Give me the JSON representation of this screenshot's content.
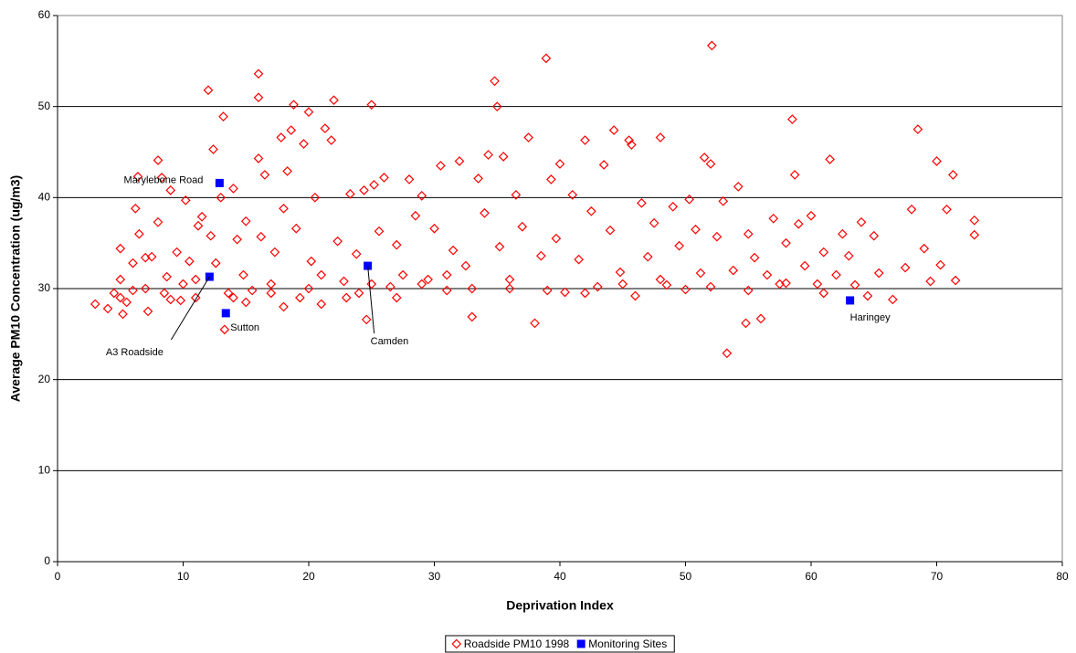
{
  "chart_data": {
    "type": "scatter",
    "xlabel": "Deprivation Index",
    "ylabel": "Average PM10 Concentration (ug/m3)",
    "xlim": [
      0,
      80
    ],
    "xticks": [
      0,
      10,
      20,
      30,
      40,
      50,
      60,
      70,
      80
    ],
    "ylim": [
      0,
      60
    ],
    "yticks": [
      0,
      10,
      20,
      30,
      40,
      50,
      60
    ],
    "grid": true,
    "legend": "bottom",
    "series": [
      {
        "name": "Roadside PM10 1998",
        "color": "#ff0000",
        "marker": "diamond",
        "x": [
          3,
          4,
          4.5,
          5,
          5,
          5,
          5.2,
          5.5,
          6,
          6.2,
          6.4,
          6.5,
          7,
          7,
          7.2,
          7.5,
          8,
          8,
          8.3,
          8.5,
          8.7,
          9,
          9.5,
          9.8,
          10,
          10.2,
          10.5,
          11,
          11.2,
          11.5,
          12,
          12.2,
          12.4,
          12.6,
          13,
          13.2,
          13.3,
          13.6,
          14,
          14.3,
          14.8,
          15,
          15.5,
          16,
          16,
          16,
          16.2,
          16.5,
          17,
          17.3,
          17.8,
          18,
          18.3,
          18.6,
          18.8,
          19,
          19.3,
          19.6,
          20,
          20.2,
          20.5,
          21,
          21.3,
          21.8,
          22,
          22.3,
          22.8,
          23.3,
          23.8,
          24,
          24.4,
          24.6,
          25,
          25.2,
          25.6,
          26,
          26.5,
          27,
          27.5,
          28,
          28.5,
          29,
          29.5,
          30,
          30.5,
          31,
          31.5,
          32,
          32.5,
          33,
          33.5,
          34,
          34.3,
          34.8,
          35,
          35.2,
          35.5,
          36,
          36.5,
          37,
          37.5,
          38,
          38.5,
          38.9,
          39.3,
          39.7,
          40,
          40.4,
          41,
          41.5,
          42,
          42.5,
          43,
          43.5,
          44,
          44.3,
          44.8,
          45.5,
          45.7,
          46,
          46.5,
          47,
          47.5,
          48,
          48.5,
          49,
          49.5,
          50,
          50.3,
          50.8,
          51.2,
          51.5,
          52,
          52.1,
          52.5,
          53,
          53.3,
          53.8,
          54.2,
          54.8,
          55,
          55.5,
          56,
          56.5,
          57,
          57.5,
          58,
          58.5,
          58.7,
          59,
          59.5,
          60,
          60.5,
          61,
          61.5,
          62,
          62.5,
          63,
          63.5,
          64,
          64.5,
          65,
          65.4,
          66.5,
          67.5,
          68,
          68.5,
          69,
          69.5,
          70,
          70.3,
          70.8,
          71.3,
          71.5,
          73,
          73,
          6,
          9,
          11,
          14,
          15,
          17,
          18,
          20,
          21,
          23,
          25,
          27,
          29,
          31,
          33,
          36,
          39,
          42,
          45,
          48,
          52,
          55,
          58,
          61
        ],
        "values": [
          28.3,
          27.8,
          29.5,
          34.4,
          31,
          29,
          27.2,
          28.5,
          32.8,
          38.8,
          42.3,
          36,
          33.4,
          30,
          27.5,
          33.5,
          44.1,
          37.3,
          42.2,
          29.5,
          31.3,
          40.8,
          34,
          28.7,
          30.5,
          39.7,
          33,
          29,
          36.9,
          37.9,
          51.8,
          35.8,
          45.3,
          32.8,
          40,
          48.9,
          25.5,
          29.5,
          41,
          35.4,
          31.5,
          37.4,
          29.8,
          53.6,
          51,
          44.3,
          35.7,
          42.5,
          30.5,
          34,
          46.6,
          38.8,
          42.9,
          47.4,
          50.2,
          36.6,
          29,
          45.9,
          49.4,
          33,
          40,
          28.3,
          47.6,
          46.3,
          50.7,
          35.2,
          30.8,
          40.4,
          33.8,
          29.5,
          40.8,
          26.6,
          50.2,
          41.4,
          36.3,
          42.2,
          30.2,
          34.8,
          31.5,
          42,
          38,
          40.2,
          31,
          36.6,
          43.5,
          29.8,
          34.2,
          44,
          32.5,
          26.9,
          42.1,
          38.3,
          44.7,
          52.8,
          50,
          34.6,
          44.5,
          30,
          40.3,
          36.8,
          46.6,
          26.2,
          33.6,
          55.3,
          42,
          35.5,
          43.7,
          29.6,
          40.3,
          33.2,
          46.3,
          38.5,
          30.2,
          43.6,
          36.4,
          47.4,
          31.8,
          46.3,
          45.8,
          29.2,
          39.4,
          33.5,
          37.2,
          46.6,
          30.4,
          39,
          34.7,
          29.9,
          39.8,
          36.5,
          31.7,
          44.4,
          43.7,
          56.7,
          35.7,
          39.6,
          22.9,
          32,
          41.2,
          26.2,
          36,
          33.4,
          26.7,
          31.5,
          37.7,
          30.5,
          35,
          48.6,
          42.5,
          37.1,
          32.5,
          38,
          30.5,
          34,
          44.2,
          31.5,
          36,
          33.6,
          30.4,
          37.3,
          29.2,
          35.8,
          31.7,
          28.8,
          32.3,
          38.7,
          47.5,
          34.4,
          30.8,
          44,
          32.6,
          38.7,
          42.5,
          30.9,
          37.5,
          35.9,
          29.8,
          28.8,
          31,
          29,
          28.5,
          29.5,
          28,
          30,
          31.5,
          29,
          30.5,
          29,
          30.5,
          31.5,
          30,
          31,
          29.8,
          29.5,
          30.5,
          31,
          30.2,
          29.8,
          30.6,
          29.5
        ]
      },
      {
        "name": "Monitoring Sites",
        "color": "#0000ff",
        "marker": "square",
        "x": [
          12.9,
          12.1,
          13.4,
          24.7,
          63.1
        ],
        "values": [
          41.6,
          31.3,
          27.3,
          32.5,
          28.7
        ],
        "labels": [
          "Marylebone Road",
          "A3 Roadside",
          "Sutton",
          "Camden",
          "Haringey"
        ]
      }
    ]
  }
}
